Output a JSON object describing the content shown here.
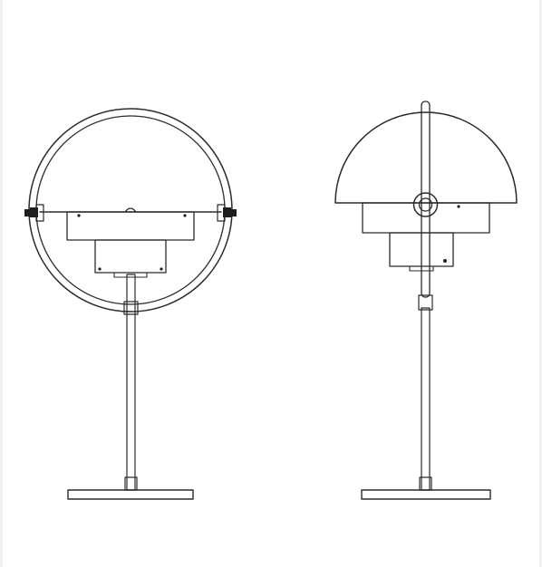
{
  "drawing": {
    "views": [
      {
        "id": "front-view"
      },
      {
        "id": "side-view"
      }
    ],
    "colors": {
      "background": "#ffffff",
      "line": "#2b2b2b",
      "fill": "#ffffff",
      "dark": "#1e1e1e",
      "edge": "#f0f0f0"
    }
  }
}
